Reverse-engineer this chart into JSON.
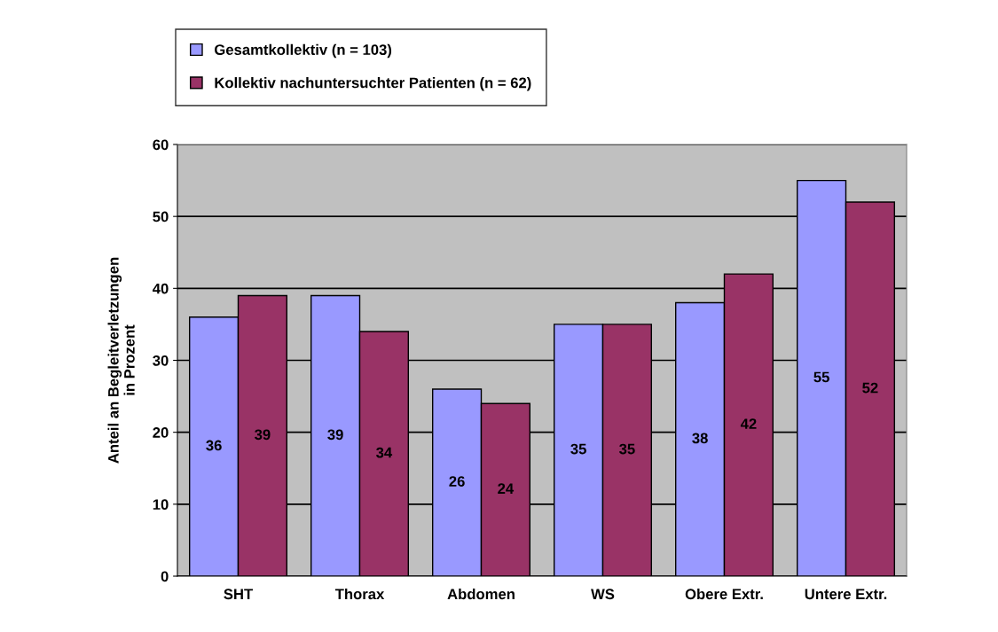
{
  "chart_data": {
    "type": "bar",
    "ylabel": "Anteil an Begleitverletzungen\nin Prozent",
    "categories": [
      "SHT",
      "Thorax",
      "Abdomen",
      "WS",
      "Obere Extr.",
      "Untere Extr."
    ],
    "series": [
      {
        "name": "Gesamtkollektiv (n = 103)",
        "color": "#9999ff",
        "values": [
          36,
          39,
          26,
          35,
          38,
          55
        ]
      },
      {
        "name": "Kollektiv nachuntersuchter Patienten (n = 62)",
        "color": "#993366",
        "values": [
          39,
          34,
          24,
          35,
          42,
          52
        ]
      }
    ],
    "ylim": [
      0,
      60
    ],
    "yticks": [
      0,
      10,
      20,
      30,
      40,
      50,
      60
    ],
    "grid": "y",
    "legend": "top",
    "data_labels": true
  }
}
